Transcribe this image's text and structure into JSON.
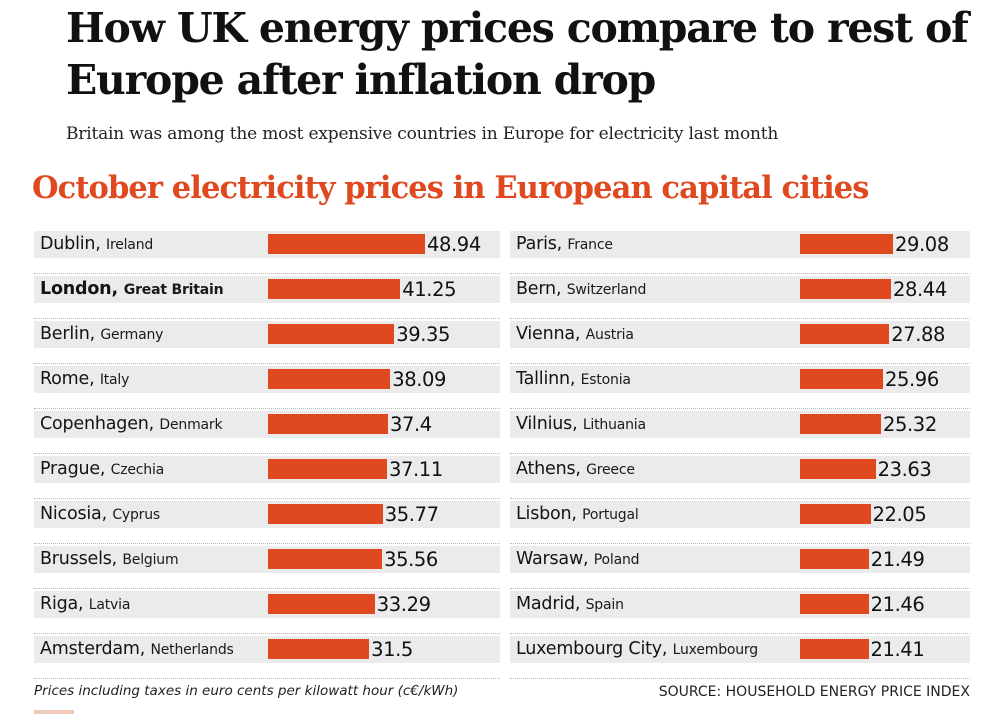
{
  "headline": "How UK energy prices compare to rest of Europe after inflation drop",
  "subtitle": "Britain was among the most expensive countries in Europe for electricity last month",
  "accent_color": "#e0481f",
  "chart_data": {
    "type": "bar",
    "orientation": "horizontal",
    "title": "October electricity prices in European capital cities",
    "unit_note": "Prices including taxes in euro cents per kilowatt hour (c€/kWh)",
    "source": "SOURCE: HOUSEHOLD ENERGY PRICE INDEX",
    "highlight": "London",
    "columns": [
      {
        "xlim": [
          0,
          48.94
        ],
        "rows": [
          {
            "city": "Dublin,",
            "country": "Ireland",
            "value": 48.94,
            "label": "48.94"
          },
          {
            "city": "London,",
            "country": "Great Britain",
            "value": 41.25,
            "label": "41.25"
          },
          {
            "city": "Berlin,",
            "country": "Germany",
            "value": 39.35,
            "label": "39.35"
          },
          {
            "city": "Rome,",
            "country": "Italy",
            "value": 38.09,
            "label": "38.09"
          },
          {
            "city": "Copenhagen,",
            "country": "Denmark",
            "value": 37.4,
            "label": "37.4"
          },
          {
            "city": "Prague,",
            "country": "Czechia",
            "value": 37.11,
            "label": "37.11"
          },
          {
            "city": "Nicosia,",
            "country": "Cyprus",
            "value": 35.77,
            "label": "35.77"
          },
          {
            "city": "Brussels,",
            "country": "Belgium",
            "value": 35.56,
            "label": "35.56"
          },
          {
            "city": "Riga,",
            "country": "Latvia",
            "value": 33.29,
            "label": "33.29"
          },
          {
            "city": "Amsterdam,",
            "country": "Netherlands",
            "value": 31.5,
            "label": "31.5"
          }
        ]
      },
      {
        "xlim": [
          0,
          29.08
        ],
        "rows": [
          {
            "city": "Paris,",
            "country": "France",
            "value": 29.08,
            "label": "29.08"
          },
          {
            "city": "Bern,",
            "country": "Switzerland",
            "value": 28.44,
            "label": "28.44"
          },
          {
            "city": "Vienna,",
            "country": "Austria",
            "value": 27.88,
            "label": "27.88"
          },
          {
            "city": "Tallinn,",
            "country": "Estonia",
            "value": 25.96,
            "label": "25.96"
          },
          {
            "city": "Vilnius,",
            "country": "Lithuania",
            "value": 25.32,
            "label": "25.32"
          },
          {
            "city": "Athens,",
            "country": "Greece",
            "value": 23.63,
            "label": "23.63"
          },
          {
            "city": "Lisbon,",
            "country": "Portugal",
            "value": 22.05,
            "label": "22.05"
          },
          {
            "city": "Warsaw,",
            "country": "Poland",
            "value": 21.49,
            "label": "21.49"
          },
          {
            "city": "Madrid,",
            "country": "Spain",
            "value": 21.46,
            "label": "21.46"
          },
          {
            "city": "Luxembourg City,",
            "country": "Luxembourg",
            "value": 21.41,
            "label": "21.41"
          }
        ]
      }
    ]
  }
}
